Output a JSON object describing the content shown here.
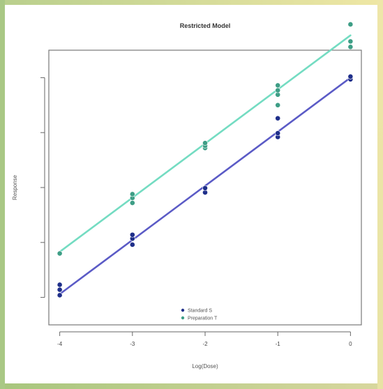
{
  "chart_data": {
    "type": "scatter",
    "title": "Restricted Model",
    "xlabel": "Log(Dose)",
    "ylabel": "Response",
    "xlim": [
      -4.15,
      0.15
    ],
    "ylim": [
      1.0,
      6.0
    ],
    "x_ticks": [
      -4,
      -3,
      -2,
      -1,
      0
    ],
    "x_tick_labels": [
      "-4",
      "-3",
      "-2",
      "-1",
      "0"
    ],
    "y_ticks": [
      1.5,
      2.5,
      3.5,
      4.5,
      5.5
    ],
    "y_tick_labels": [
      "",
      "",
      "",
      "",
      ""
    ],
    "grid": false,
    "legend_position": "bottom-center",
    "series": [
      {
        "name": "Standard S",
        "color": "#1f2f8a",
        "line_color": "#5b5bc6",
        "marker": "circle",
        "line": {
          "intercept": 5.5,
          "slope": 0.985
        },
        "points": [
          {
            "x": -4,
            "y": 1.54
          },
          {
            "x": -4,
            "y": 1.64
          },
          {
            "x": -4,
            "y": 1.73
          },
          {
            "x": -3,
            "y": 2.46
          },
          {
            "x": -3,
            "y": 2.57
          },
          {
            "x": -3,
            "y": 2.64
          },
          {
            "x": -2,
            "y": 3.41
          },
          {
            "x": -2,
            "y": 3.49
          },
          {
            "x": -1,
            "y": 4.42
          },
          {
            "x": -1,
            "y": 4.49
          },
          {
            "x": -1,
            "y": 4.76
          },
          {
            "x": 0,
            "y": 5.47
          },
          {
            "x": 0,
            "y": 5.52
          }
        ]
      },
      {
        "name": "Preparation T",
        "color": "#3e9e86",
        "line_color": "#74dcc2",
        "marker": "circle",
        "line": {
          "intercept": 6.27,
          "slope": 0.985
        },
        "points": [
          {
            "x": -4,
            "y": 2.3
          },
          {
            "x": -3,
            "y": 3.22
          },
          {
            "x": -3,
            "y": 3.31
          },
          {
            "x": -3,
            "y": 3.38
          },
          {
            "x": -2,
            "y": 4.22
          },
          {
            "x": -2,
            "y": 4.26
          },
          {
            "x": -2,
            "y": 4.31
          },
          {
            "x": -1,
            "y": 5.0
          },
          {
            "x": -1,
            "y": 5.19
          },
          {
            "x": -1,
            "y": 5.27
          },
          {
            "x": -1,
            "y": 5.36
          },
          {
            "x": 0,
            "y": 6.06
          },
          {
            "x": 0,
            "y": 6.16
          },
          {
            "x": 0,
            "y": 6.47
          }
        ]
      }
    ]
  }
}
